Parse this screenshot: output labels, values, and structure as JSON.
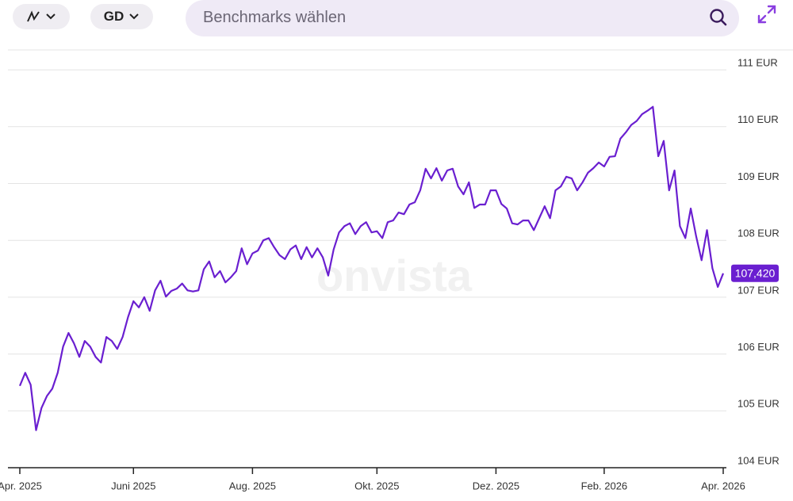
{
  "toolbar": {
    "period": "GD",
    "search_placeholder": "Benchmarks wählen"
  },
  "watermark": "onvista",
  "chart_data": {
    "type": "line",
    "color": "#6a1fd0",
    "values": [
      105.44,
      105.67,
      105.46,
      104.66,
      105.05,
      105.26,
      105.39,
      105.67,
      106.13,
      106.37,
      106.19,
      105.95,
      106.23,
      106.13,
      105.95,
      105.85,
      106.3,
      106.23,
      106.09,
      106.3,
      106.65,
      106.93,
      106.82,
      107.0,
      106.76,
      107.12,
      107.29,
      107.01,
      107.11,
      107.15,
      107.24,
      107.12,
      107.1,
      107.12,
      107.49,
      107.63,
      107.35,
      107.46,
      107.26,
      107.35,
      107.46,
      107.86,
      107.58,
      107.77,
      107.82,
      108.0,
      108.04,
      107.88,
      107.74,
      107.67,
      107.84,
      107.91,
      107.67,
      107.88,
      107.7,
      107.86,
      107.7,
      107.38,
      107.84,
      108.14,
      108.25,
      108.3,
      108.11,
      108.25,
      108.32,
      108.14,
      108.16,
      108.04,
      108.32,
      108.35,
      108.49,
      108.46,
      108.63,
      108.67,
      108.88,
      109.26,
      109.09,
      109.27,
      109.05,
      109.23,
      109.26,
      108.95,
      108.81,
      109.02,
      108.57,
      108.63,
      108.63,
      108.88,
      108.88,
      108.64,
      108.56,
      108.3,
      108.28,
      108.35,
      108.35,
      108.18,
      108.39,
      108.6,
      108.39,
      108.88,
      108.95,
      109.12,
      109.09,
      108.88,
      109.02,
      109.19,
      109.27,
      109.37,
      109.3,
      109.47,
      109.48,
      109.79,
      109.9,
      110.03,
      110.1,
      110.22,
      110.28,
      110.35,
      109.48,
      109.75,
      108.88,
      109.23,
      108.25,
      108.04,
      108.56,
      108.07,
      107.65,
      108.18,
      107.51,
      107.18,
      107.42
    ],
    "xlim": [
      0,
      130
    ],
    "xticks": [
      {
        "value": 0,
        "label": "Apr. 2025"
      },
      {
        "value": 21,
        "label": "Juni 2025"
      },
      {
        "value": 43,
        "label": "Aug. 2025"
      },
      {
        "value": 66,
        "label": "Okt. 2025"
      },
      {
        "value": 88,
        "label": "Dez. 2025"
      },
      {
        "value": 108,
        "label": "Feb. 2026"
      },
      {
        "value": 130,
        "label": "Apr. 2026"
      }
    ],
    "ylim": [
      104,
      111.35
    ],
    "yticks": [
      {
        "value": 104,
        "label": "104 EUR"
      },
      {
        "value": 105,
        "label": "105 EUR"
      },
      {
        "value": 106,
        "label": "106 EUR"
      },
      {
        "value": 107,
        "label": "107 EUR"
      },
      {
        "value": 108,
        "label": "108 EUR"
      },
      {
        "value": 109,
        "label": "109 EUR"
      },
      {
        "value": 110,
        "label": "110 EUR"
      },
      {
        "value": 111,
        "label": "111 EUR"
      }
    ],
    "grid": true,
    "last_value": 107.42,
    "last_value_label": "107,420"
  }
}
